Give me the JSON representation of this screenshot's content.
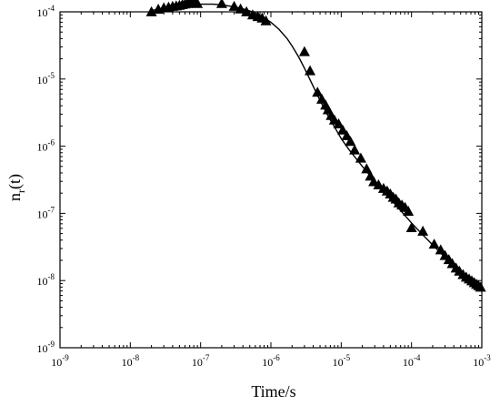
{
  "chart_data": {
    "type": "scatter",
    "title": "",
    "xlabel": "Time/s",
    "ylabel": {
      "base": "n",
      "sub": "r",
      "suffix": "(t)"
    },
    "x_scale": "log",
    "y_scale": "log",
    "xlim": [
      1e-09,
      0.001
    ],
    "ylim": [
      1e-09,
      0.0001
    ],
    "x_ticks": [
      {
        "value": 1e-09,
        "base": "10",
        "exp": "-9"
      },
      {
        "value": 1e-08,
        "base": "10",
        "exp": "-8"
      },
      {
        "value": 1e-07,
        "base": "10",
        "exp": "-7"
      },
      {
        "value": 1e-06,
        "base": "10",
        "exp": "-6"
      },
      {
        "value": 1e-05,
        "base": "10",
        "exp": "-5"
      },
      {
        "value": 0.0001,
        "base": "10",
        "exp": "-4"
      },
      {
        "value": 0.001,
        "base": "10",
        "exp": "-3"
      }
    ],
    "y_ticks": [
      {
        "value": 1e-09,
        "base": "10",
        "exp": "-9"
      },
      {
        "value": 1e-08,
        "base": "10",
        "exp": "-8"
      },
      {
        "value": 1e-07,
        "base": "10",
        "exp": "-7"
      },
      {
        "value": 1e-06,
        "base": "10",
        "exp": "-6"
      },
      {
        "value": 1e-05,
        "base": "10",
        "exp": "-5"
      },
      {
        "value": 0.0001,
        "base": "10",
        "exp": "-4"
      }
    ],
    "grid": false,
    "legend": "none",
    "marker": "filled-triangle",
    "color": "#000000",
    "series": [
      {
        "kind": "markers",
        "x": [
          2e-08,
          2.5e-08,
          3e-08,
          3.5e-08,
          4e-08,
          4.5e-08,
          5e-08,
          5.5e-08,
          6e-08,
          6.5e-08,
          7e-08,
          7.5e-08,
          8e-08,
          8.5e-08,
          9e-08,
          2e-07,
          3e-07,
          3.7e-07,
          4.5e-07,
          5.5e-07,
          6.5e-07,
          7.5e-07,
          8.5e-07,
          3e-06,
          3.6e-06,
          4.6e-06,
          5.3e-06,
          6e-06,
          6.5e-06,
          7.2e-06,
          8e-06,
          9.2e-06,
          1.05e-05,
          1.2e-05,
          1.35e-05,
          1.55e-05,
          1.9e-05,
          2.3e-05,
          2.6e-05,
          2.9e-05,
          3.4e-05,
          4e-05,
          4.5e-05,
          5e-05,
          5.5e-05,
          6e-05,
          6.6e-05,
          7.3e-05,
          8.1e-05,
          9e-05,
          0.0001,
          0.000145,
          0.00021,
          0.00026,
          0.0003,
          0.00034,
          0.00038,
          0.00043,
          0.00048,
          0.00054,
          0.0006,
          0.00066,
          0.00072,
          0.00078,
          0.00084,
          0.0009,
          0.00096
        ],
        "y": [
          9.8e-05,
          0.000107,
          0.000112,
          0.000115,
          0.000118,
          0.00012,
          0.000122,
          0.000125,
          0.000128,
          0.00013,
          0.000132,
          0.000132,
          0.000132,
          0.000133,
          0.00013,
          0.00013,
          0.000118,
          0.000108,
          9.8e-05,
          8.8e-05,
          8.3e-05,
          7.9e-05,
          7.2e-05,
          2.5e-05,
          1.3e-05,
          6.2e-06,
          4.9e-06,
          4e-06,
          3.4e-06,
          2.8e-06,
          2.4e-06,
          2.1e-06,
          1.7e-06,
          1.4e-06,
          1.15e-06,
          8.6e-07,
          6.5e-07,
          4.5e-07,
          3.5e-07,
          2.9e-07,
          2.6e-07,
          2.3e-07,
          2.1e-07,
          1.9e-07,
          1.7e-07,
          1.6e-07,
          1.4e-07,
          1.3e-07,
          1.2e-07,
          1.05e-07,
          6e-08,
          5.3e-08,
          3.4e-08,
          2.8e-08,
          2.3e-08,
          2e-08,
          1.75e-08,
          1.5e-08,
          1.35e-08,
          1.2e-08,
          1.1e-08,
          1.03e-08,
          9.7e-09,
          9.1e-09,
          8.6e-09,
          8.2e-09,
          7.8e-09
        ]
      },
      {
        "kind": "fit-line",
        "x": [
          2e-08,
          3e-08,
          5e-08,
          7e-08,
          1e-07,
          1.5e-07,
          2e-07,
          3e-07,
          4e-07,
          5e-07,
          7e-07,
          1e-06,
          1.3e-06,
          1.7e-06,
          2e-06,
          2.5e-06,
          3e-06,
          4e-06,
          5e-06,
          6e-06,
          7e-06,
          8e-06,
          1e-05,
          1.3e-05,
          1.7e-05,
          2e-05,
          3e-05,
          4e-05,
          5e-05,
          7e-05,
          0.0001,
          0.00015,
          0.0002,
          0.0003,
          0.0005,
          0.0007,
          0.001
        ],
        "y": [
          0.000105,
          0.000112,
          0.00012,
          0.000126,
          0.00013,
          0.00013,
          0.000127,
          0.000119,
          0.000111,
          0.000103,
          8.9e-05,
          7e-05,
          5.5e-05,
          4e-05,
          3.1e-05,
          2.1e-05,
          1.45e-05,
          7.8e-06,
          4.8e-06,
          3.3e-06,
          2.45e-06,
          1.95e-06,
          1.3e-06,
          8.8e-07,
          6.2e-07,
          5e-07,
          3e-07,
          2.15e-07,
          1.65e-07,
          1.1e-07,
          7.2e-08,
          4.6e-08,
          3.4e-08,
          2.2e-08,
          1.35e-08,
          1e-08,
          7.4e-09
        ]
      }
    ]
  }
}
